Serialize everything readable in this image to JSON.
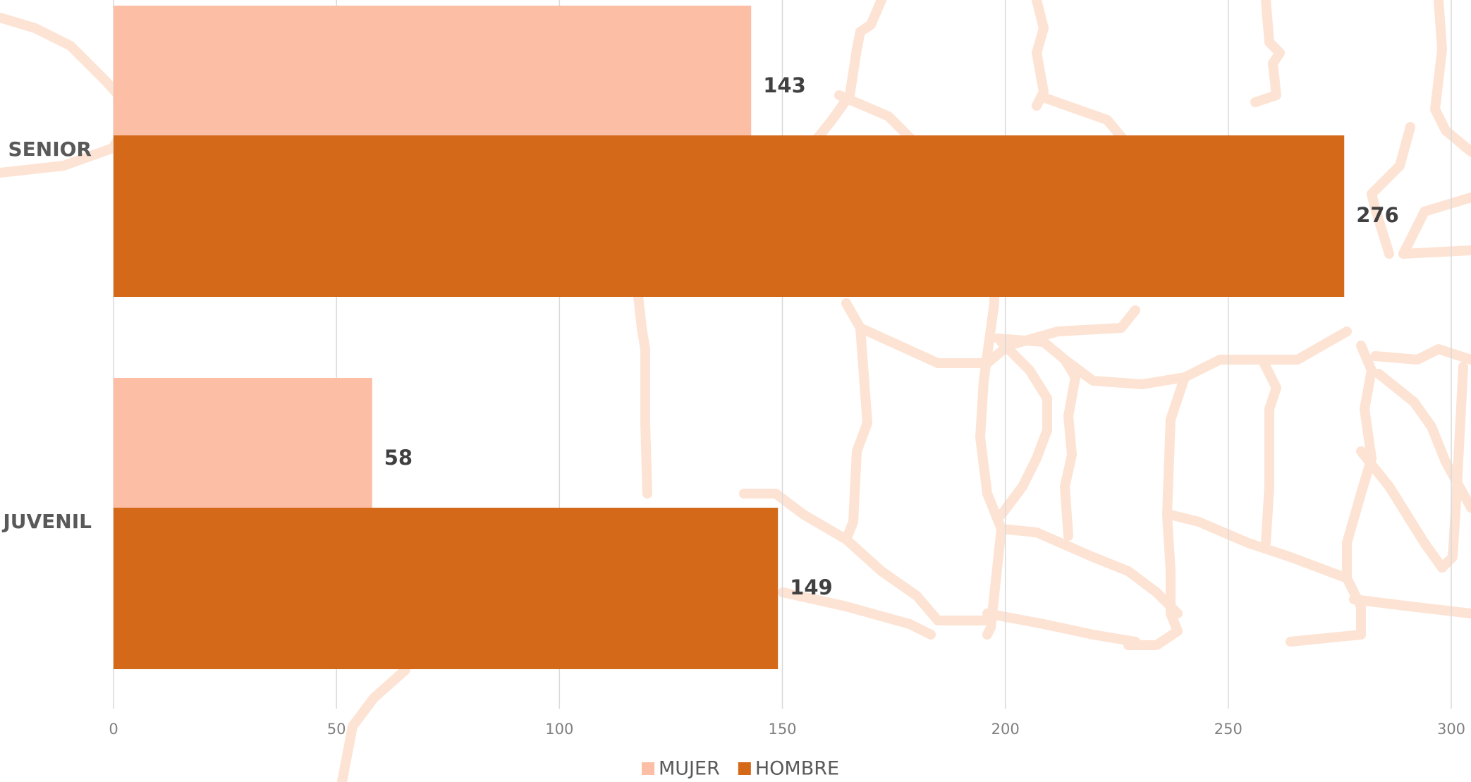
{
  "chart_data": {
    "type": "bar",
    "orientation": "horizontal",
    "categories": [
      "SENIOR",
      "JUVENIL"
    ],
    "series": [
      {
        "name": "MUJER",
        "color": "#fcbfa5",
        "values": [
          143,
          58
        ]
      },
      {
        "name": "HOMBRE",
        "color": "#d4691a",
        "values": [
          276,
          149
        ]
      }
    ],
    "xlim": [
      0,
      300
    ],
    "xticks": [
      0,
      50,
      100,
      150,
      200,
      250,
      300
    ],
    "grid": true,
    "legend": "bottom"
  }
}
